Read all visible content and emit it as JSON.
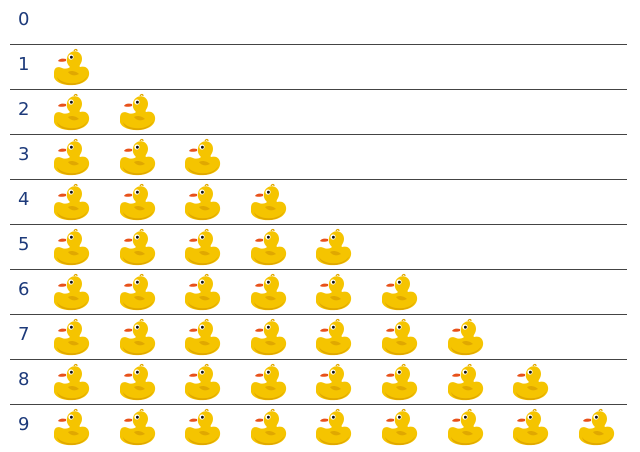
{
  "rows": [
    {
      "label": "0",
      "count": 0
    },
    {
      "label": "1",
      "count": 1
    },
    {
      "label": "2",
      "count": 2
    },
    {
      "label": "3",
      "count": 3
    },
    {
      "label": "4",
      "count": 4
    },
    {
      "label": "5",
      "count": 5
    },
    {
      "label": "6",
      "count": 6
    },
    {
      "label": "7",
      "count": 7
    },
    {
      "label": "8",
      "count": 8
    },
    {
      "label": "9",
      "count": 9
    }
  ],
  "icon": "rubber-duck-icon",
  "colors": {
    "duck_body": "#f5c400",
    "duck_shade": "#e0a800",
    "beak": "#e8511a",
    "label": "#1d3a7a",
    "divider": "#444444"
  }
}
